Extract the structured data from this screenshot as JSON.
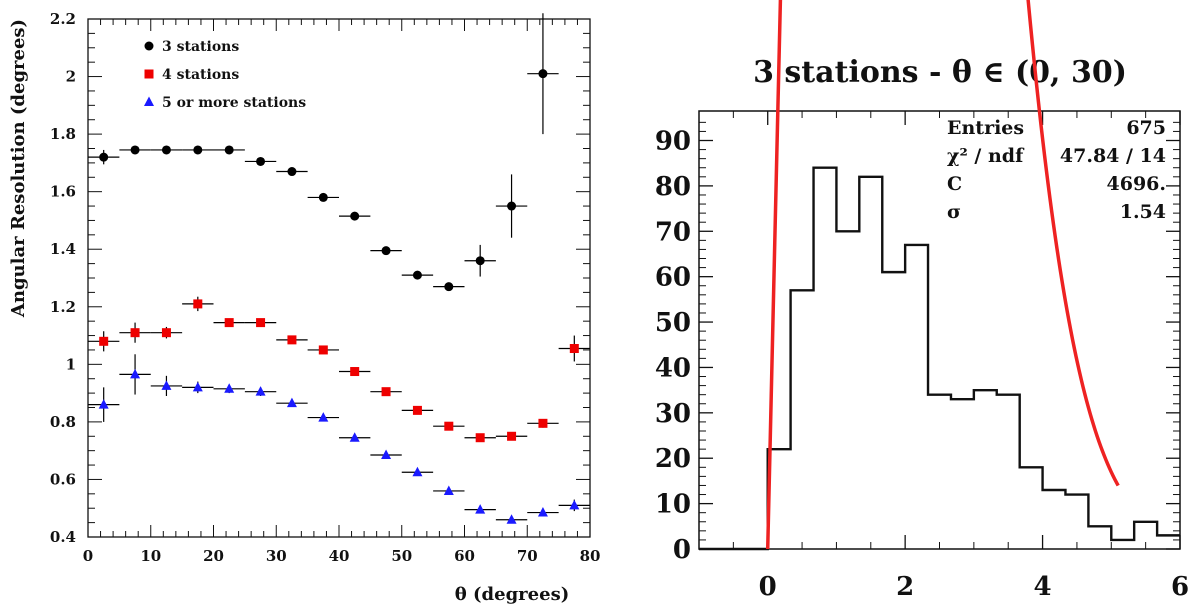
{
  "chart_data": [
    {
      "type": "scatter",
      "xlabel": "θ (degrees)",
      "ylabel": "Angular Resolution (degrees)",
      "xlim": [
        0,
        80
      ],
      "ylim": [
        0.4,
        2.2
      ],
      "x_ticks": [
        0,
        10,
        20,
        30,
        40,
        50,
        60,
        70,
        80
      ],
      "y_ticks": [
        0.4,
        0.6,
        0.8,
        1,
        1.2,
        1.4,
        1.6,
        1.8,
        2,
        2.2
      ],
      "x_tick_labels": [
        "0",
        "10",
        "20",
        "30",
        "40",
        "50",
        "60",
        "70",
        "80"
      ],
      "y_tick_labels": [
        "0.4",
        "0.6",
        "0.8",
        "1",
        "1.2",
        "1.4",
        "1.6",
        "1.8",
        "2",
        "2.2"
      ],
      "legend_position": "top-left",
      "series": [
        {
          "name": "3 stations",
          "marker": "circle",
          "color": "#000000",
          "x": [
            2.5,
            7.5,
            12.5,
            17.5,
            22.5,
            27.5,
            32.5,
            37.5,
            42.5,
            47.5,
            52.5,
            57.5,
            62.5,
            67.5,
            72.5
          ],
          "y": [
            1.72,
            1.745,
            1.745,
            1.745,
            1.745,
            1.705,
            1.67,
            1.58,
            1.515,
            1.395,
            1.31,
            1.27,
            1.36,
            1.55,
            2.01
          ],
          "yerr": [
            0.025,
            0.012,
            0.01,
            0.01,
            0.01,
            0.012,
            0.012,
            0.012,
            0.012,
            0.012,
            0.012,
            0.012,
            0.055,
            0.11,
            0.21
          ]
        },
        {
          "name": "4 stations",
          "marker": "square",
          "color": "#ee0000",
          "x": [
            2.5,
            7.5,
            12.5,
            17.5,
            22.5,
            27.5,
            32.5,
            37.5,
            42.5,
            47.5,
            52.5,
            57.5,
            62.5,
            67.5,
            72.5,
            77.5
          ],
          "y": [
            1.08,
            1.11,
            1.11,
            1.21,
            1.145,
            1.145,
            1.085,
            1.05,
            0.975,
            0.905,
            0.84,
            0.785,
            0.745,
            0.75,
            0.795,
            1.055
          ],
          "yerr": [
            0.035,
            0.035,
            0.02,
            0.025,
            0.012,
            0.012,
            0.012,
            0.012,
            0.012,
            0.012,
            0.012,
            0.012,
            0.01,
            0.012,
            0.015,
            0.045
          ]
        },
        {
          "name": "5 or more stations",
          "marker": "triangle",
          "color": "#1a1aff",
          "x": [
            2.5,
            7.5,
            12.5,
            17.5,
            22.5,
            27.5,
            32.5,
            37.5,
            42.5,
            47.5,
            52.5,
            57.5,
            62.5,
            67.5,
            72.5,
            77.5
          ],
          "y": [
            0.86,
            0.965,
            0.925,
            0.92,
            0.915,
            0.905,
            0.865,
            0.815,
            0.745,
            0.685,
            0.625,
            0.56,
            0.495,
            0.46,
            0.485,
            0.51
          ],
          "yerr": [
            0.06,
            0.07,
            0.035,
            0.02,
            0.015,
            0.015,
            0.012,
            0.012,
            0.012,
            0.012,
            0.012,
            0.012,
            0.01,
            0.01,
            0.012,
            0.02
          ]
        }
      ]
    },
    {
      "type": "histogram",
      "title": "3 stations - θ ∈ (0, 30)",
      "xlim": [
        -1,
        6
      ],
      "ylim": [
        0,
        95
      ],
      "x_ticks": [
        0,
        2,
        4,
        6
      ],
      "y_ticks": [
        0,
        10,
        20,
        30,
        40,
        50,
        60,
        70,
        80,
        90
      ],
      "x_tick_labels": [
        "0",
        "2",
        "4",
        "6"
      ],
      "y_tick_labels": [
        "0",
        "10",
        "20",
        "30",
        "40",
        "50",
        "60",
        "70",
        "80",
        "90"
      ],
      "bin_edges": [
        -1,
        0,
        0.333,
        0.667,
        1.0,
        1.333,
        1.667,
        2.0,
        2.333,
        2.667,
        3.0,
        3.333,
        3.667,
        4.0,
        4.333,
        4.667,
        5.0,
        5.333,
        5.667,
        6.0
      ],
      "counts": [
        0,
        22,
        57,
        84,
        70,
        82,
        61,
        67,
        34,
        33,
        35,
        34,
        18,
        13,
        12,
        5,
        2,
        6,
        3
      ],
      "fit": {
        "color": "#ee2222",
        "C": 4696,
        "sigma": 1.54,
        "bin_width": 0.333,
        "x_range": [
          0,
          5.1
        ]
      },
      "stats": [
        {
          "label": "Entries",
          "value": "675"
        },
        {
          "label": "χ² / ndf",
          "value": "47.84 / 14"
        },
        {
          "label": "C",
          "value": "4696."
        },
        {
          "label": "σ",
          "value": "1.54"
        }
      ]
    }
  ]
}
